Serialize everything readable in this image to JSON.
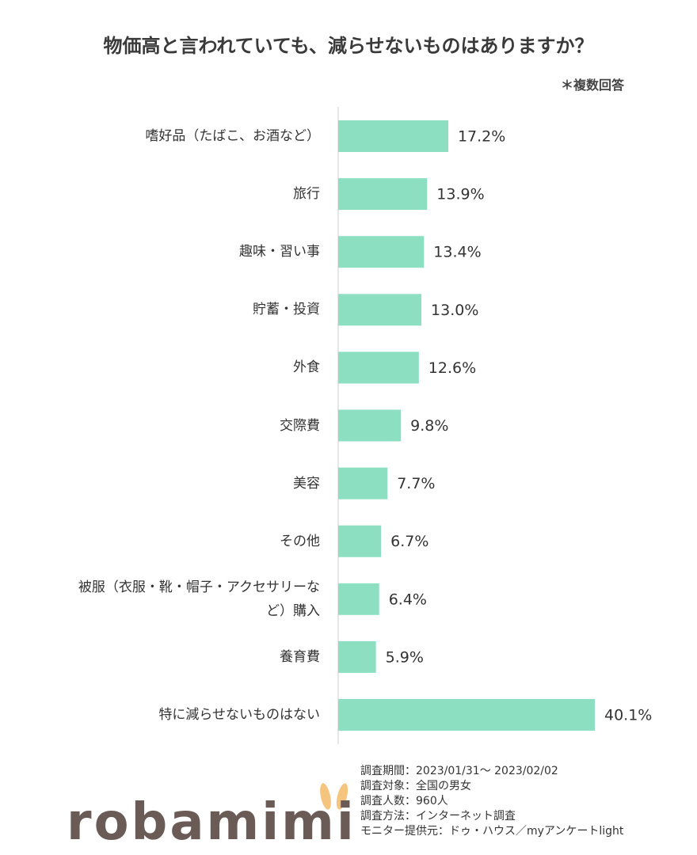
{
  "chart_data": {
    "type": "bar",
    "orientation": "horizontal",
    "title": "物価高と言われていても、減らせないものはありますか？",
    "note": "＊複数回答",
    "categories": [
      "嗜好品（たばこ、お酒など）",
      "旅行",
      "趣味・習い事",
      "貯蓄・投資",
      "外食",
      "交際費",
      "美容",
      "その他",
      "被服（衣服・靴・帽子・アクセサリーなど）購入",
      "養育費",
      "特に減らせないものはない"
    ],
    "values": [
      17.2,
      13.9,
      13.4,
      13.0,
      12.6,
      9.8,
      7.7,
      6.7,
      6.4,
      5.9,
      40.1
    ],
    "value_labels": [
      "17.2%",
      "13.9%",
      "13.4%",
      "13.0%",
      "12.6%",
      "9.8%",
      "7.7%",
      "6.7%",
      "6.4%",
      "5.9%",
      "40.1%"
    ],
    "color": "#8ddfc2"
  },
  "footer": {
    "logo": "robamimi",
    "notes": [
      "調査期間：2023/01/31～ 2023/02/02",
      "調査対象：全国の男女",
      "調査人数：960人",
      "調査方法：インターネット調査",
      "モニター提供元：ドゥ・ハウス／myアンケートlight"
    ]
  }
}
